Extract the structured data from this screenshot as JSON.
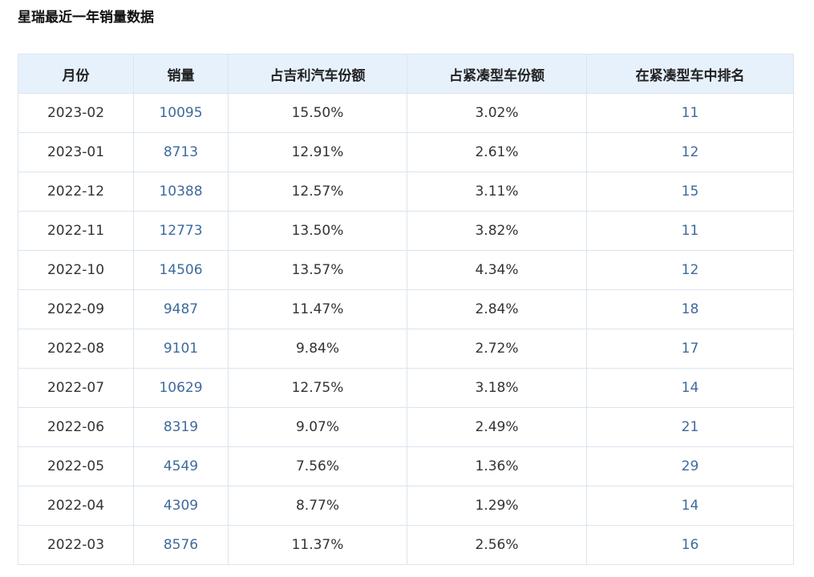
{
  "page": {
    "title": "星瑞最近一年销量数据"
  },
  "table": {
    "headers": [
      "月份",
      "销量",
      "占吉利汽车份额",
      "占紧凑型车份额",
      "在紧凑型车中排名"
    ],
    "rows": [
      [
        "2023-02",
        "10095",
        "15.50%",
        "3.02%",
        "11"
      ],
      [
        "2023-01",
        "8713",
        "12.91%",
        "2.61%",
        "12"
      ],
      [
        "2022-12",
        "10388",
        "12.57%",
        "3.11%",
        "15"
      ],
      [
        "2022-11",
        "12773",
        "13.50%",
        "3.82%",
        "11"
      ],
      [
        "2022-10",
        "14506",
        "13.57%",
        "4.34%",
        "12"
      ],
      [
        "2022-09",
        "9487",
        "11.47%",
        "2.84%",
        "18"
      ],
      [
        "2022-08",
        "9101",
        "9.84%",
        "2.72%",
        "17"
      ],
      [
        "2022-07",
        "10629",
        "12.75%",
        "3.18%",
        "14"
      ],
      [
        "2022-06",
        "8319",
        "9.07%",
        "2.49%",
        "21"
      ],
      [
        "2022-05",
        "4549",
        "7.56%",
        "1.36%",
        "29"
      ],
      [
        "2022-04",
        "4309",
        "8.77%",
        "1.29%",
        "14"
      ],
      [
        "2022-03",
        "8576",
        "11.37%",
        "2.56%",
        "16"
      ]
    ]
  },
  "colors": {
    "header_background": "#e6f1fc",
    "link_text": "#3e6a9c",
    "border": "#dbe4ee"
  }
}
